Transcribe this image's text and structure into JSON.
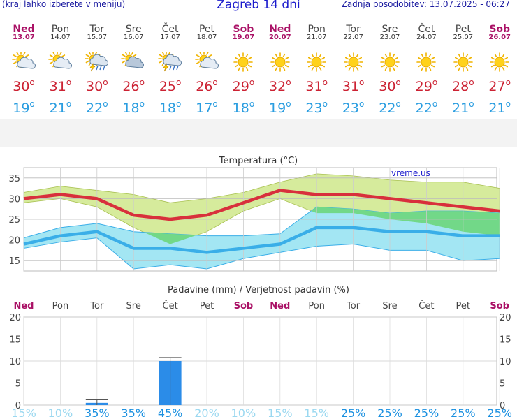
{
  "header": {
    "menu_hint": "(kraj lahko izberete v meniju)",
    "title": "Zagreb 14 dni",
    "updated": "Zadnja posodobitev: 13.07.2025 - 06:27"
  },
  "days": [
    {
      "name": "Ned",
      "date": "13.07",
      "weekend": true,
      "icon": "partly-cloudy-icon",
      "max": "30",
      "min": "19"
    },
    {
      "name": "Pon",
      "date": "14.07",
      "weekend": false,
      "icon": "partly-cloudy-icon",
      "max": "31",
      "min": "21"
    },
    {
      "name": "Tor",
      "date": "15.07",
      "weekend": false,
      "icon": "thunderstorm-icon",
      "max": "30",
      "min": "22"
    },
    {
      "name": "Sre",
      "date": "16.07",
      "weekend": false,
      "icon": "cloudy-icon",
      "max": "26",
      "min": "18"
    },
    {
      "name": "Čet",
      "date": "17.07",
      "weekend": false,
      "icon": "thunderstorm-icon",
      "max": "25",
      "min": "18"
    },
    {
      "name": "Pet",
      "date": "18.07",
      "weekend": false,
      "icon": "partly-cloudy-icon",
      "max": "26",
      "min": "17"
    },
    {
      "name": "Sob",
      "date": "19.07",
      "weekend": true,
      "icon": "sun-icon",
      "max": "29",
      "min": "18"
    },
    {
      "name": "Ned",
      "date": "20.07",
      "weekend": true,
      "icon": "sun-icon",
      "max": "32",
      "min": "19"
    },
    {
      "name": "Pon",
      "date": "21.07",
      "weekend": false,
      "icon": "sun-icon",
      "max": "31",
      "min": "23"
    },
    {
      "name": "Tor",
      "date": "22.07",
      "weekend": false,
      "icon": "sun-icon",
      "max": "31",
      "min": "23"
    },
    {
      "name": "Sre",
      "date": "23.07",
      "weekend": false,
      "icon": "sun-icon",
      "max": "30",
      "min": "22"
    },
    {
      "name": "Čet",
      "date": "24.07",
      "weekend": false,
      "icon": "sun-icon",
      "max": "29",
      "min": "22"
    },
    {
      "name": "Pet",
      "date": "25.07",
      "weekend": false,
      "icon": "sun-icon",
      "max": "28",
      "min": "21"
    },
    {
      "name": "Sob",
      "date": "26.07",
      "weekend": true,
      "icon": "sun-icon",
      "max": "27",
      "min": "21"
    }
  ],
  "degree_symbol": "o",
  "chart_data": [
    {
      "type": "line",
      "title": "Temperatura (°C)",
      "watermark": "vreme.us",
      "ylim": [
        12.5,
        37.5
      ],
      "yticks": [
        15,
        20,
        25,
        30,
        35
      ],
      "grid": true,
      "x": [
        "13.07",
        "14.07",
        "15.07",
        "16.07",
        "17.07",
        "18.07",
        "19.07",
        "20.07",
        "21.07",
        "22.07",
        "23.07",
        "24.07",
        "25.07",
        "26.07"
      ],
      "series": [
        {
          "values": [
            30,
            31,
            30,
            26,
            25,
            26,
            29,
            32,
            31,
            31,
            30,
            29,
            28,
            27
          ],
          "color": "#d8303c"
        },
        {
          "values": [
            19,
            21,
            22,
            18,
            18,
            17,
            18,
            19,
            23,
            23,
            22,
            22,
            21,
            21
          ],
          "color": "#3aaee8"
        }
      ],
      "max_band_upper": [
        31.5,
        33,
        32,
        31,
        29,
        30,
        31.5,
        34,
        36,
        35.5,
        34.5,
        34,
        34,
        32.5
      ],
      "max_band_lower": [
        29,
        30,
        28,
        23,
        19,
        22,
        27,
        30,
        26.5,
        26.5,
        25,
        24,
        22,
        21
      ],
      "min_band_upper": [
        20.5,
        23,
        24,
        22,
        21.5,
        21,
        21,
        21.5,
        28,
        27.5,
        26.5,
        27,
        27,
        26.5
      ],
      "min_band_lower": [
        18,
        19.5,
        20.5,
        13,
        14,
        13,
        15.5,
        17,
        18.5,
        19,
        17.5,
        17.5,
        15,
        15.5
      ],
      "colors": {
        "max_band": "#d6eb9c",
        "min_band": "#a3e6f3",
        "overlap": "#72d888"
      }
    },
    {
      "type": "bar",
      "title": "Padavine (mm) / Verjetnost padavin (%)",
      "categories": [
        "Ned",
        "Pon",
        "Tor",
        "Sre",
        "Čet",
        "Pet",
        "Sob",
        "Ned",
        "Pon",
        "Tor",
        "Sre",
        "Čet",
        "Pet",
        "Sob"
      ],
      "weekend": [
        true,
        false,
        false,
        false,
        false,
        false,
        true,
        true,
        false,
        false,
        false,
        false,
        false,
        true
      ],
      "values": [
        0,
        0,
        0.5,
        0,
        10,
        0,
        0,
        0,
        0,
        0,
        0,
        0,
        0,
        0
      ],
      "error_high": [
        0,
        0,
        1.2,
        0,
        10.8,
        0,
        0,
        0,
        0,
        0,
        0,
        0,
        0,
        0
      ],
      "probability": [
        "15%",
        "10%",
        "35%",
        "35%",
        "45%",
        "20%",
        "10%",
        "15%",
        "15%",
        "25%",
        "25%",
        "25%",
        "25%",
        "25%"
      ],
      "ylim": [
        0,
        20
      ],
      "yticks": [
        0,
        5,
        10,
        15,
        20
      ],
      "colors": {
        "bar": "#2b8ce8",
        "prob_high": "#1a90e0",
        "prob_low": "#9bd8f0"
      }
    }
  ]
}
